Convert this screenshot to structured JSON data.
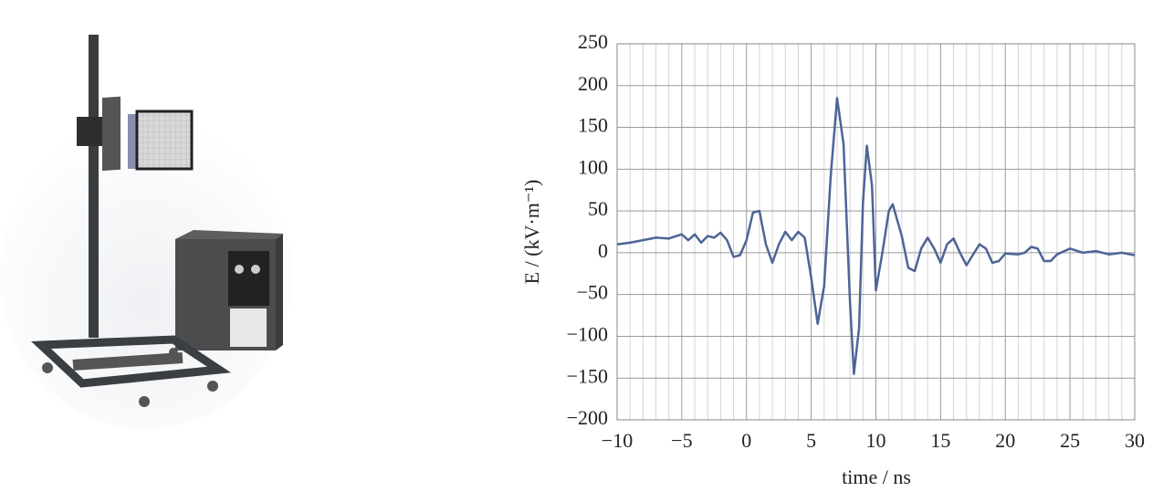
{
  "chart_data": {
    "type": "line",
    "x_label": "time / ns",
    "y_label": "E / (kV·m⁻¹)",
    "grid": true,
    "xlim": [
      -10,
      30
    ],
    "ylim": [
      -200,
      250
    ],
    "xticks": [
      {
        "value": -10,
        "label": "−10"
      },
      {
        "value": -5,
        "label": "−5"
      },
      0,
      5,
      10,
      15,
      20,
      25,
      30
    ],
    "yticks": [
      {
        "value": -200,
        "label": "−200"
      },
      {
        "value": -150,
        "label": "−150"
      },
      {
        "value": -100,
        "label": "−100"
      },
      {
        "value": -50,
        "label": "−50"
      },
      0,
      50,
      100,
      150,
      200,
      250
    ],
    "series": [
      {
        "color": "#4d6496",
        "x": [
          -10,
          -9,
          -8,
          -7,
          -6,
          -5,
          -4.5,
          -4,
          -3.5,
          -3,
          -2.5,
          -2,
          -1.5,
          -1,
          -0.5,
          0,
          0.5,
          1,
          1.5,
          2,
          2.5,
          3,
          3.5,
          4,
          4.5,
          5,
          5.5,
          6,
          6.5,
          7,
          7.5,
          8,
          8.3,
          8.7,
          9,
          9.3,
          9.7,
          10,
          10.5,
          11,
          11.3,
          12,
          12.5,
          13,
          13.5,
          14,
          14.5,
          15,
          15.5,
          16,
          16.5,
          17,
          18,
          18.5,
          19,
          19.5,
          20,
          21,
          21.5,
          22,
          22.5,
          23,
          23.5,
          24,
          25,
          26,
          27,
          28,
          29,
          30
        ],
        "values": [
          10,
          12,
          15,
          18,
          17,
          22,
          15,
          22,
          12,
          20,
          18,
          24,
          15,
          -5,
          -3,
          15,
          48,
          50,
          10,
          -12,
          10,
          25,
          15,
          25,
          18,
          -30,
          -85,
          -40,
          90,
          185,
          130,
          -60,
          -145,
          -90,
          60,
          128,
          80,
          -45,
          0,
          50,
          58,
          20,
          -18,
          -22,
          5,
          18,
          5,
          -12,
          10,
          17,
          0,
          -15,
          10,
          5,
          -12,
          -10,
          -1,
          -2,
          0,
          7,
          5,
          -10,
          -10,
          -2,
          5,
          0,
          2,
          -2,
          0,
          -3
        ]
      }
    ]
  }
}
